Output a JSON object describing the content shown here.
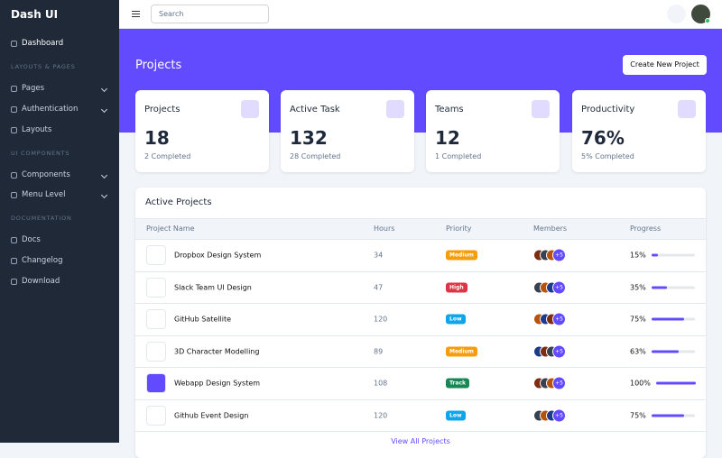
{
  "sidebar": {
    "brand": "Dash UI",
    "items": [
      {
        "type": "link",
        "label": "Dashboard"
      },
      {
        "type": "section",
        "label": "LAYOUTS & PAGES"
      },
      {
        "type": "link",
        "label": "Pages"
      },
      {
        "type": "link",
        "label": "Authentication"
      },
      {
        "type": "link",
        "label": "Layouts"
      },
      {
        "type": "section",
        "label": "UI COMPONENTS"
      },
      {
        "type": "link",
        "label": "Components"
      },
      {
        "type": "link",
        "label": "Menu Level"
      },
      {
        "type": "section",
        "label": "DOCUMENTATION"
      },
      {
        "type": "link",
        "label": "Docs"
      },
      {
        "type": "link",
        "label": "Changelog"
      },
      {
        "type": "link",
        "label": "Download"
      }
    ]
  },
  "topbar": {
    "search_placeholder": "Search"
  },
  "header": {
    "title": "Projects",
    "button": "Create New Project"
  },
  "cards": [
    {
      "title": "Projects",
      "value": "18",
      "subtitle": "2 Completed"
    },
    {
      "title": "Active Task",
      "value": "132",
      "subtitle": "28 Completed"
    },
    {
      "title": "Teams",
      "value": "12",
      "subtitle": "1 Completed"
    },
    {
      "title": "Productivity",
      "value": "76%",
      "subtitle": "5% Completed"
    }
  ],
  "table": {
    "title": "Active Projects",
    "columns": [
      "Project Name",
      "Hours",
      "Priority",
      "Members",
      "Progress"
    ],
    "rows": [
      {
        "name": "Dropbox Design System",
        "hours": 34,
        "priority": "Medium",
        "badge_color": "#f59e0b",
        "members_more": "+5",
        "progress": {
          "value": 15,
          "label": "15%"
        }
      },
      {
        "name": "Slack Team UI Design",
        "hours": 47,
        "priority": "High",
        "badge_color": "#dc3545",
        "members_more": "+5",
        "progress": {
          "value": 35,
          "label": "35%"
        }
      },
      {
        "name": "GitHub Satellite",
        "hours": 120,
        "priority": "Low",
        "badge_color": "#0ea5e9",
        "members_more": "+5",
        "progress": {
          "value": 75,
          "label": "75%"
        }
      },
      {
        "name": "3D Character Modelling",
        "hours": 89,
        "priority": "Medium",
        "badge_color": "#f59e0b",
        "members_more": "+5",
        "progress": {
          "value": 63,
          "label": "63%"
        }
      },
      {
        "name": "Webapp Design System",
        "hours": 108,
        "priority": "Track",
        "badge_color": "#198754",
        "members_more": "+5",
        "progress": {
          "value": 100,
          "label": "100%"
        }
      },
      {
        "name": "Github Event Design",
        "hours": 120,
        "priority": "Low",
        "badge_color": "#0ea5e9",
        "members_more": "+5",
        "progress": {
          "value": 75,
          "label": "75%"
        }
      }
    ],
    "footer_link": "View All Projects"
  }
}
